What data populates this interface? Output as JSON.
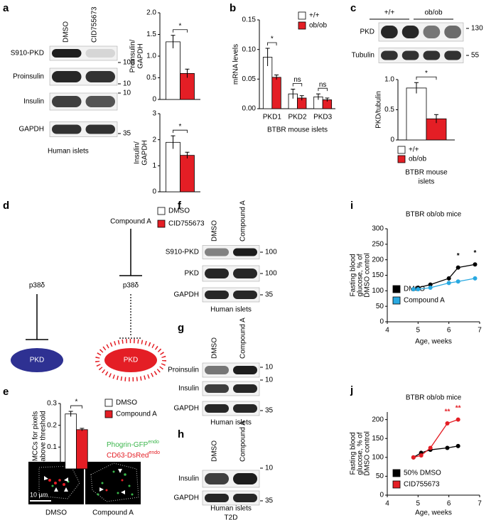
{
  "panels": [
    "a",
    "b",
    "c",
    "d",
    "e",
    "f",
    "g",
    "h",
    "i",
    "j"
  ],
  "blots": [
    {
      "lanes": [
        "DMSO",
        "CID755673"
      ],
      "rows": [
        "S910-PKD",
        "Proinsulin",
        "Insulin",
        "GAPDH"
      ],
      "markers": [
        "100",
        "10",
        "10",
        "35"
      ],
      "caption": "Human islets"
    },
    {
      "lanes": [
        "+/+",
        "ob/ob"
      ],
      "rows": [
        "PKD",
        "Tubulin"
      ],
      "markers": [
        "130",
        "55"
      ]
    },
    {
      "lanes": [
        "DMSO",
        "Compound A"
      ],
      "rows": [
        "S910-PKD",
        "PKD",
        "GAPDH"
      ],
      "markers": [
        "100",
        "100",
        "35"
      ],
      "caption": "Human islets"
    },
    {
      "lanes": [
        "DMSO",
        "Compound A"
      ],
      "rows": [
        "Proinsulin",
        "Insulin",
        "GAPDH"
      ],
      "markers": [
        "10",
        "10",
        "35"
      ],
      "caption": "Human islets"
    },
    {
      "lanes": [
        "DMSO",
        "Compound A"
      ],
      "rows": [
        "Insulin",
        "GAPDH"
      ],
      "markers": [
        "10",
        "35"
      ],
      "caption": [
        "Human islets",
        "T2D"
      ]
    }
  ],
  "diagram": {
    "inhibitor": "Compound A",
    "kinase": [
      "p38δ",
      "p38δ"
    ],
    "target": [
      "PKD",
      "PKD"
    ]
  },
  "microscopy": {
    "channels": [
      {
        "name": "Phogrin-GFP",
        "sup": "endo"
      },
      {
        "name": "CD63-DsRed",
        "sup": "endo"
      }
    ],
    "scale_bar": "10 μm",
    "captions": [
      "DMSO",
      "Compound A"
    ]
  },
  "chart_data": [
    {
      "type": "bar",
      "ylabel": [
        "Proinsulin/",
        "GAPDH"
      ],
      "ylim": [
        0,
        2
      ],
      "yticks": [
        0,
        0.5,
        {
          "value": 1,
          "label": "1.0"
        },
        1.5,
        {
          "value": 2,
          "label": "2.0"
        }
      ],
      "series": [
        {
          "color": "#ffffff",
          "values": [
            1.33
          ],
          "errors": [
            0.15
          ]
        },
        {
          "color": "#e41e25",
          "values": [
            0.6
          ],
          "errors": [
            0.1
          ]
        }
      ],
      "annotations": [
        "*"
      ]
    },
    {
      "type": "bar",
      "ylabel": [
        "Insulin/",
        "GAPDH"
      ],
      "ylim": [
        0,
        3
      ],
      "yticks": [
        0,
        1,
        2,
        3
      ],
      "series": [
        {
          "name": "DMSO",
          "color": "#ffffff",
          "values": [
            1.9
          ],
          "errors": [
            0.25
          ]
        },
        {
          "name": "CID755673",
          "color": "#e41e25",
          "values": [
            1.4
          ],
          "errors": [
            0.12
          ]
        }
      ],
      "annotations": [
        "*"
      ]
    },
    {
      "type": "bar",
      "ylabel": "mRNA levels",
      "xlabel": "BTBR mouse islets",
      "categories": [
        "PKD1",
        "PKD2",
        "PKD3"
      ],
      "ylim": [
        0,
        0.15
      ],
      "yticks": [
        {
          "value": 0,
          "label": "0.00"
        },
        {
          "value": 0.05,
          "label": "0.05"
        },
        {
          "value": 0.1,
          "label": "0.10"
        },
        {
          "value": 0.15,
          "label": "0.15"
        }
      ],
      "series": [
        {
          "name": "+/+",
          "color": "#ffffff",
          "values": [
            0.087,
            0.025,
            0.02
          ],
          "errors": [
            0.015,
            0.008,
            0.005
          ]
        },
        {
          "name": "ob/ob",
          "color": "#e41e25",
          "values": [
            0.053,
            0.018,
            0.015
          ],
          "errors": [
            0.004,
            0.004,
            0.003
          ]
        }
      ],
      "annotations": [
        "*",
        "ns",
        "ns"
      ]
    },
    {
      "type": "bar",
      "ylabel": "PKD/tubulin",
      "xlabel": [
        "BTBR mouse",
        "islets"
      ],
      "ylim": [
        0,
        1
      ],
      "yticks": [
        0,
        0.5,
        {
          "value": 1,
          "label": "1.0"
        }
      ],
      "series": [
        {
          "name": "+/+",
          "color": "#ffffff",
          "values": [
            0.86
          ],
          "errors": [
            0.09
          ]
        },
        {
          "name": "ob/ob",
          "color": "#e41e25",
          "values": [
            0.35
          ],
          "errors": [
            0.07
          ]
        }
      ],
      "annotations": [
        "*"
      ]
    },
    {
      "type": "bar",
      "ylabel": [
        "MCCs for pixels",
        "above threshold"
      ],
      "ylim": [
        0,
        0.3
      ],
      "yticks": [
        0,
        0.1,
        0.2,
        0.3
      ],
      "series": [
        {
          "name": "DMSO",
          "color": "#ffffff",
          "values": [
            0.252
          ],
          "errors": [
            0.012
          ]
        },
        {
          "name": "Compound A",
          "color": "#e41e25",
          "values": [
            0.18
          ],
          "errors": [
            0.006
          ]
        }
      ],
      "annotations": [
        "*"
      ]
    },
    {
      "type": "line",
      "title": "BTBR ob/ob mice",
      "xlabel": "Age, weeks",
      "ylabel": [
        "Fasting blood",
        "glucose, % of",
        "DMSO control"
      ],
      "x": [
        4.85,
        5.0,
        5.4,
        6.0,
        6.3,
        6.85
      ],
      "xlim": [
        4,
        7
      ],
      "xticks": [
        4,
        5,
        6,
        7
      ],
      "ylim": [
        0,
        300
      ],
      "yticks": [
        0,
        50,
        100,
        150,
        200,
        250,
        300
      ],
      "series": [
        {
          "name": "DMSO",
          "color": "#000000",
          "values": [
            105,
            110,
            120,
            140,
            175,
            185
          ]
        },
        {
          "name": "Compound A",
          "color": "#29a9e1",
          "values": [
            105,
            105,
            110,
            125,
            130,
            140
          ]
        }
      ],
      "annotations": [
        {
          "x": 6.3,
          "text": "*"
        },
        {
          "x": 6.85,
          "text": "*"
        }
      ],
      "annotation_color": "#000000"
    },
    {
      "type": "line",
      "title": "BTBR ob/ob mice",
      "xlabel": "Age, weeks",
      "ylabel": [
        "Fasting blood",
        "glucose, % of",
        "DMSO control"
      ],
      "x": [
        4.85,
        5.1,
        5.4,
        5.95,
        6.3
      ],
      "xlim": [
        4,
        7
      ],
      "xticks": [
        4,
        5,
        6,
        7
      ],
      "ylim": [
        0,
        220
      ],
      "yticks": [
        0,
        50,
        100,
        150,
        200
      ],
      "series": [
        {
          "name": "50% DMSO",
          "color": "#000000",
          "values": [
            100,
            112,
            120,
            125,
            130
          ]
        },
        {
          "name": "CID755673",
          "color": "#e41e25",
          "values": [
            100,
            105,
            125,
            190,
            200
          ]
        }
      ],
      "annotations": [
        {
          "x": 5.95,
          "text": "**"
        },
        {
          "x": 6.3,
          "text": "**"
        }
      ],
      "annotation_color": "#e41e25"
    }
  ]
}
